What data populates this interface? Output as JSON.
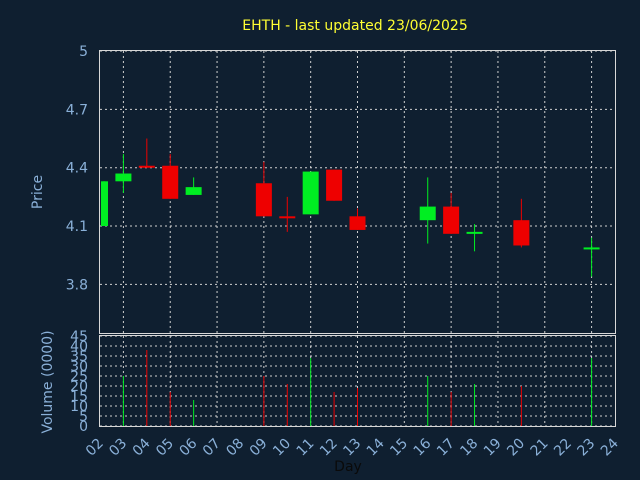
{
  "chart_data": {
    "type": "candlestick",
    "title": "EHTH - last updated 23/06/2025",
    "xlabel": "Day",
    "price_panel": {
      "ylabel": "Price",
      "ylim": [
        3.55,
        5.0
      ],
      "yticks": [
        "5",
        "4.7",
        "4.4",
        "4.1",
        "3.8"
      ],
      "ytick_values": [
        5.0,
        4.7,
        4.4,
        4.1,
        3.8
      ],
      "grid": true
    },
    "volume_panel": {
      "ylabel": "Volume (0000)",
      "ylim": [
        0,
        45
      ],
      "yticks": [
        "45",
        "40",
        "35",
        "30",
        "25",
        "20",
        "15",
        "10",
        "5",
        "0"
      ],
      "ytick_values": [
        45,
        40,
        35,
        30,
        25,
        20,
        15,
        10,
        5,
        0
      ],
      "grid": true
    },
    "x_ticks": [
      "02",
      "03",
      "04",
      "05",
      "06",
      "07",
      "08",
      "09",
      "10",
      "11",
      "12",
      "13",
      "14",
      "15",
      "16",
      "17",
      "18",
      "19",
      "20",
      "21",
      "22",
      "23",
      "24"
    ],
    "colors": {
      "up": "#00ee22",
      "down": "#ee0000",
      "background": "#0f1f30",
      "grid": "#d0d0d0",
      "axis_text": "#8ab0d8",
      "title": "#ffff33"
    },
    "candles": [
      {
        "day": 0,
        "open": 4.1,
        "close": 4.33,
        "high": 4.33,
        "low": 4.1,
        "volume": 0
      },
      {
        "day": 1,
        "open": 4.33,
        "close": 4.37,
        "high": 4.47,
        "low": 4.27,
        "volume": 25
      },
      {
        "day": 2,
        "open": 4.41,
        "close": 4.4,
        "high": 4.55,
        "low": 4.4,
        "volume": 38
      },
      {
        "day": 3,
        "open": 4.41,
        "close": 4.24,
        "high": 4.47,
        "low": 4.24,
        "volume": 17
      },
      {
        "day": 4,
        "open": 4.26,
        "close": 4.3,
        "high": 4.35,
        "low": 4.26,
        "volume": 13
      },
      {
        "day": 7,
        "open": 4.32,
        "close": 4.15,
        "high": 4.43,
        "low": 4.15,
        "volume": 25
      },
      {
        "day": 8,
        "open": 4.15,
        "close": 4.14,
        "high": 4.25,
        "low": 4.07,
        "volume": 21
      },
      {
        "day": 9,
        "open": 4.16,
        "close": 4.38,
        "high": 4.38,
        "low": 4.16,
        "volume": 34
      },
      {
        "day": 10,
        "open": 4.39,
        "close": 4.23,
        "high": 4.39,
        "low": 4.23,
        "volume": 17
      },
      {
        "day": 11,
        "open": 4.15,
        "close": 4.08,
        "high": 4.19,
        "low": 4.08,
        "volume": 19
      },
      {
        "day": 14,
        "open": 4.13,
        "close": 4.2,
        "high": 4.35,
        "low": 4.01,
        "volume": 25
      },
      {
        "day": 15,
        "open": 4.2,
        "close": 4.06,
        "high": 4.27,
        "low": 4.06,
        "volume": 17
      },
      {
        "day": 16,
        "open": 4.06,
        "close": 4.07,
        "high": 4.11,
        "low": 3.97,
        "volume": 21
      },
      {
        "day": 18,
        "open": 4.13,
        "close": 4.0,
        "high": 4.24,
        "low": 3.99,
        "volume": 20
      },
      {
        "day": 21,
        "open": 3.99,
        "close": 3.99,
        "high": 4.04,
        "low": 3.84,
        "volume": 34
      }
    ]
  }
}
